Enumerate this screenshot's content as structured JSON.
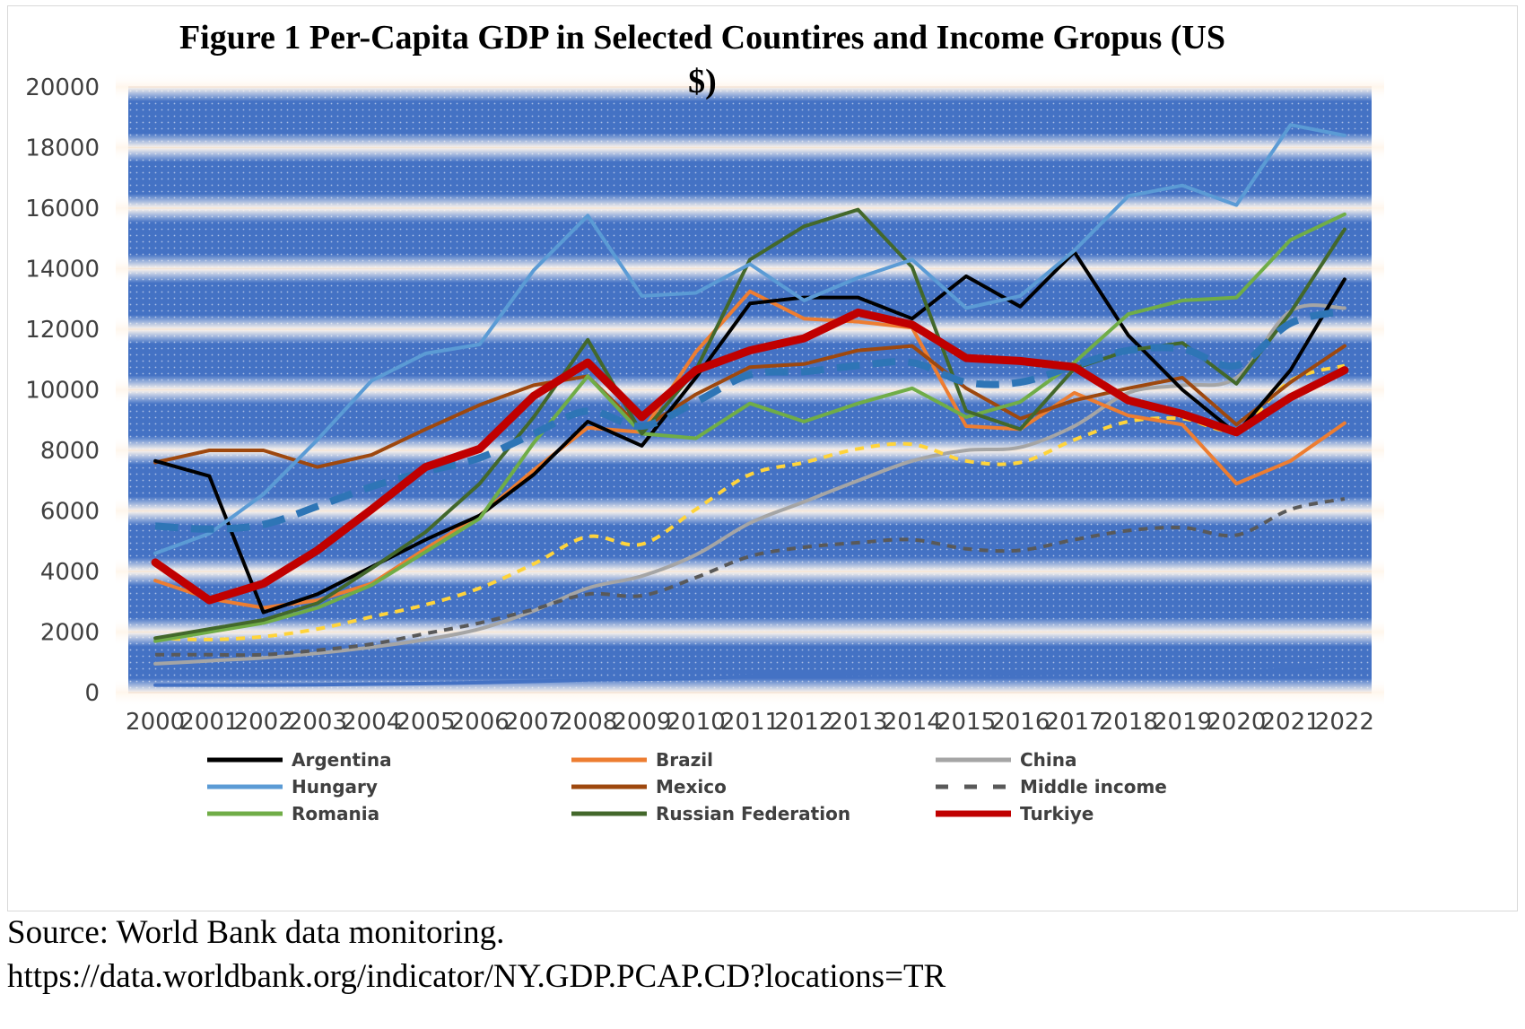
{
  "chart_data": {
    "type": "line",
    "title": "Figure 1 Per-Capita GDP in Selected Countires and Income Gropus (US $)",
    "title_lines": [
      "Figure 1 Per-Capita GDP in Selected Countires and Income Gropus (US",
      "$)"
    ],
    "xlabel": "",
    "ylabel": "",
    "ylim": [
      0,
      20000
    ],
    "yticks": [
      "0",
      "2000",
      "4000",
      "6000",
      "8000",
      "10000",
      "12000",
      "14000",
      "16000",
      "18000",
      "20000"
    ],
    "categories": [
      "2000",
      "2001",
      "2002",
      "2003",
      "2004",
      "2005",
      "2006",
      "2007",
      "2008",
      "2009",
      "2010",
      "2011",
      "2012",
      "2013",
      "2014",
      "2015",
      "2016",
      "2017",
      "2018",
      "2019",
      "2020",
      "2021",
      "2022"
    ],
    "legend_position": "bottom",
    "series": [
      {
        "name": "Argentina",
        "color": "#000000",
        "dash": "solid",
        "width": 4,
        "values": [
          7650,
          7150,
          2650,
          3250,
          4150,
          5050,
          5850,
          7200,
          8950,
          8150,
          10400,
          12850,
          13050,
          13050,
          12350,
          13750,
          12750,
          14550,
          11800,
          10000,
          8550,
          10650,
          13650
        ]
      },
      {
        "name": "Brazil",
        "color": "#ED7D31",
        "dash": "solid",
        "width": 4,
        "values": [
          3700,
          3100,
          2800,
          3050,
          3600,
          4750,
          5850,
          7350,
          8750,
          8600,
          11250,
          13250,
          12350,
          12250,
          12050,
          8800,
          8700,
          9900,
          9150,
          8850,
          6900,
          7650,
          8900
        ]
      },
      {
        "name": "China",
        "color": "#A5A5A5",
        "dash": "solid",
        "width": 4,
        "values": [
          950,
          1050,
          1150,
          1300,
          1500,
          1750,
          2100,
          2700,
          3450,
          3850,
          4550,
          5600,
          6300,
          7000,
          7650,
          8000,
          8100,
          8800,
          9900,
          10150,
          10400,
          12600,
          12700
        ]
      },
      {
        "name": "Hungary",
        "color": "#5B9BD5",
        "dash": "solid",
        "width": 4,
        "values": [
          4600,
          5250,
          6550,
          8350,
          10300,
          11200,
          11500,
          13950,
          15750,
          13100,
          13200,
          14150,
          12950,
          13700,
          14300,
          12700,
          13100,
          14600,
          16400,
          16750,
          16100,
          18750,
          18400
        ]
      },
      {
        "name": "Mexico",
        "color": "#9E480E",
        "dash": "solid",
        "width": 4,
        "values": [
          7600,
          8000,
          8000,
          7450,
          7850,
          8700,
          9500,
          10150,
          10450,
          8700,
          9850,
          10750,
          10850,
          11300,
          11450,
          10050,
          9050,
          9650,
          10050,
          10400,
          8850,
          10250,
          11450
        ]
      },
      {
        "name": "Middle income",
        "color": "#595959",
        "dash": "dash",
        "width": 4,
        "values": [
          1250,
          1250,
          1250,
          1400,
          1600,
          1950,
          2300,
          2750,
          3250,
          3200,
          3800,
          4500,
          4800,
          4950,
          5050,
          4750,
          4700,
          5050,
          5350,
          5450,
          5200,
          6050,
          6400
        ]
      },
      {
        "name": "Romania",
        "color": "#70AD47",
        "dash": "solid",
        "width": 4,
        "values": [
          1700,
          2000,
          2300,
          2800,
          3550,
          4650,
          5750,
          8250,
          10450,
          8550,
          8400,
          9550,
          8950,
          9550,
          10050,
          9100,
          9600,
          10900,
          12500,
          12950,
          13050,
          14950,
          15800
        ]
      },
      {
        "name": "Russian Federation",
        "color": "#43682B",
        "dash": "solid",
        "width": 4,
        "values": [
          1800,
          2100,
          2400,
          2950,
          4100,
          5300,
          6900,
          9100,
          11650,
          8550,
          10650,
          14300,
          15400,
          15950,
          14050,
          9300,
          8700,
          10700,
          11300,
          11550,
          10200,
          12550,
          15300
        ]
      },
      {
        "name": "Turkiye",
        "color": "#C00000",
        "dash": "solid",
        "width": 9,
        "values": [
          4300,
          3050,
          3600,
          4700,
          6050,
          7450,
          8050,
          9800,
          10900,
          9100,
          10650,
          11300,
          11700,
          12550,
          12150,
          11050,
          10950,
          10750,
          9650,
          9200,
          8600,
          9750,
          10650
        ]
      },
      {
        "name": "World",
        "color": "#2E75B6",
        "dash": "longdash",
        "width": 8,
        "in_legend": false,
        "values": [
          5500,
          5400,
          5550,
          6150,
          6800,
          7300,
          7750,
          8550,
          9300,
          8800,
          9600,
          10500,
          10600,
          10800,
          10900,
          10250,
          10250,
          10800,
          11300,
          11350,
          10800,
          12200,
          12600
        ]
      },
      {
        "name": "Upper middle income",
        "color": "#FFD43B",
        "dash": "dash",
        "width": 4,
        "in_legend": false,
        "values": [
          1800,
          1750,
          1850,
          2100,
          2500,
          2900,
          3450,
          4250,
          5150,
          4900,
          6050,
          7200,
          7600,
          8050,
          8200,
          7650,
          7600,
          8350,
          8950,
          9050,
          8700,
          10300,
          10800
        ]
      },
      {
        "name": "Low income",
        "color": "#4472C4",
        "dash": "solid",
        "width": 4,
        "in_legend": false,
        "values": [
          250,
          250,
          250,
          260,
          280,
          300,
          330,
          370,
          420,
          440,
          470,
          540,
          580,
          620,
          650,
          640,
          620,
          650,
          680,
          700,
          690,
          770,
          900
        ]
      }
    ]
  },
  "source": {
    "line1": "Source: World Bank data monitoring.",
    "line2": "https://data.worldbank.org/indicator/NY.GDP.PCAP.CD?locations=TR"
  }
}
